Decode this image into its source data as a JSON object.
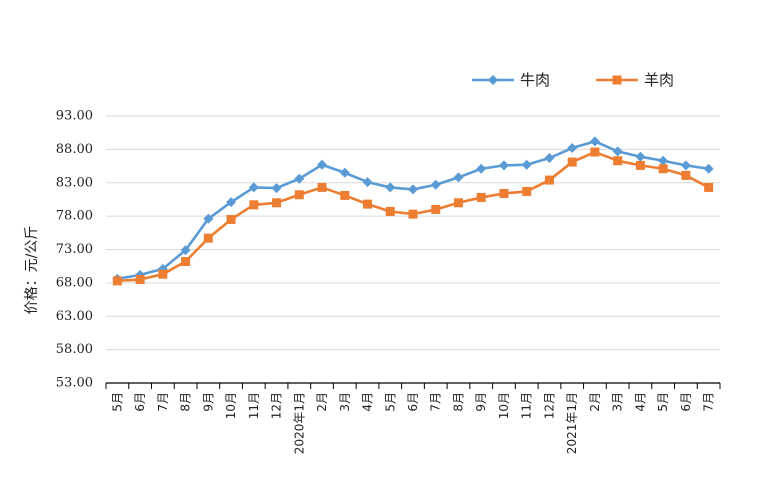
{
  "chart_data": {
    "type": "line",
    "title": "",
    "xlabel": "",
    "ylabel": "价格：元/公斤",
    "ylim": [
      53,
      93
    ],
    "y_ticks": [
      "53.00",
      "58.00",
      "63.00",
      "68.00",
      "73.00",
      "78.00",
      "83.00",
      "88.00",
      "93.00"
    ],
    "grid": true,
    "legend_position": "top-right",
    "categories": [
      "5月",
      "6月",
      "7月",
      "8月",
      "9月",
      "10月",
      "11月",
      "12月",
      "2020年1月",
      "2月",
      "3月",
      "4月",
      "5月",
      "6月",
      "7月",
      "8月",
      "9月",
      "10月",
      "11月",
      "12月",
      "2021年1月",
      "2月",
      "3月",
      "4月",
      "5月",
      "6月",
      "7月"
    ],
    "series": [
      {
        "name": "牛肉",
        "color": "#5B9BD5",
        "marker": "diamond",
        "values": [
          68.6,
          69.2,
          70.1,
          72.9,
          77.6,
          80.1,
          82.3,
          82.2,
          83.6,
          85.7,
          84.5,
          83.1,
          82.3,
          82.0,
          82.7,
          83.8,
          85.1,
          85.6,
          85.7,
          86.7,
          88.2,
          89.2,
          87.7,
          86.9,
          86.3,
          85.6,
          85.1
        ]
      },
      {
        "name": "羊肉",
        "color": "#ED7D31",
        "marker": "square",
        "values": [
          68.3,
          68.5,
          69.3,
          71.2,
          74.7,
          77.5,
          79.7,
          80.0,
          81.2,
          82.3,
          81.1,
          79.8,
          78.7,
          78.3,
          79.0,
          80.0,
          80.8,
          81.4,
          81.7,
          83.4,
          86.1,
          87.6,
          86.3,
          85.6,
          85.1,
          84.1,
          82.3
        ]
      }
    ]
  }
}
